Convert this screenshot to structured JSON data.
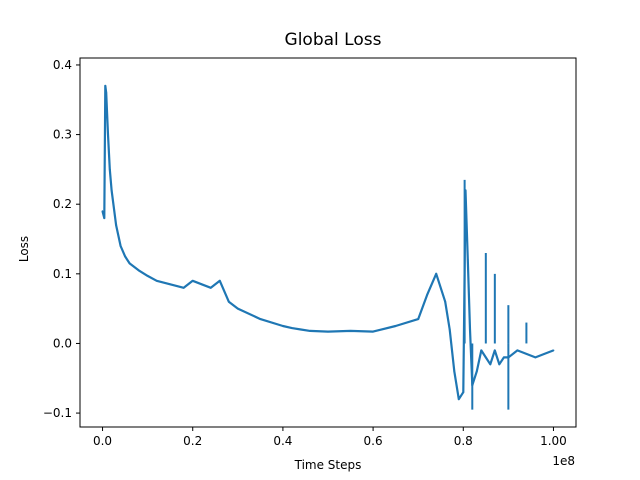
{
  "chart_data": {
    "type": "line",
    "title": "Global Loss",
    "xlabel": "Time Steps",
    "ylabel": "Loss",
    "x_offset_label": "1e8",
    "xlim": [
      -0.05,
      1.05
    ],
    "ylim": [
      -0.12,
      0.41
    ],
    "x_ticks": [
      0.0,
      0.2,
      0.4,
      0.6,
      0.8,
      1.0
    ],
    "x_tick_labels": [
      "0.0",
      "0.2",
      "0.4",
      "0.6",
      "0.8",
      "1.00"
    ],
    "y_ticks": [
      -0.1,
      0.0,
      0.1,
      0.2,
      0.3,
      0.4
    ],
    "y_tick_labels": [
      "−0.1",
      "0.0",
      "0.1",
      "0.2",
      "0.3",
      "0.4"
    ],
    "grid": false,
    "series": [
      {
        "color": "#1f77b4",
        "x": [
          0.0,
          0.004,
          0.006,
          0.008,
          0.012,
          0.016,
          0.02,
          0.03,
          0.04,
          0.05,
          0.06,
          0.08,
          0.1,
          0.12,
          0.15,
          0.18,
          0.2,
          0.22,
          0.24,
          0.26,
          0.28,
          0.3,
          0.35,
          0.4,
          0.42,
          0.44,
          0.46,
          0.5,
          0.55,
          0.6,
          0.65,
          0.7,
          0.72,
          0.74,
          0.76,
          0.77,
          0.78,
          0.79,
          0.8,
          0.805,
          0.81,
          0.815,
          0.82,
          0.83,
          0.84,
          0.85,
          0.86,
          0.87,
          0.88,
          0.89,
          0.9,
          0.92,
          0.94,
          0.96,
          0.98,
          1.0
        ],
        "y": [
          0.19,
          0.18,
          0.37,
          0.36,
          0.3,
          0.25,
          0.22,
          0.17,
          0.14,
          0.125,
          0.115,
          0.105,
          0.097,
          0.09,
          0.085,
          0.08,
          0.09,
          0.085,
          0.08,
          0.09,
          0.06,
          0.05,
          0.035,
          0.025,
          0.022,
          0.02,
          0.018,
          0.017,
          0.018,
          0.017,
          0.025,
          0.035,
          0.07,
          0.1,
          0.06,
          0.02,
          -0.04,
          -0.08,
          -0.07,
          0.22,
          0.12,
          0.02,
          -0.06,
          -0.04,
          -0.01,
          -0.02,
          -0.03,
          -0.01,
          -0.03,
          -0.02,
          -0.02,
          -0.01,
          -0.015,
          -0.02,
          -0.015,
          -0.01
        ]
      }
    ],
    "spikes": [
      {
        "x": 0.803,
        "y": 0.235
      },
      {
        "x": 0.85,
        "y": 0.13
      },
      {
        "x": 0.87,
        "y": 0.1
      },
      {
        "x": 0.9,
        "y": 0.055
      },
      {
        "x": 0.94,
        "y": 0.03
      },
      {
        "x": 0.82,
        "y": -0.095
      },
      {
        "x": 0.9,
        "y": -0.095
      }
    ]
  }
}
